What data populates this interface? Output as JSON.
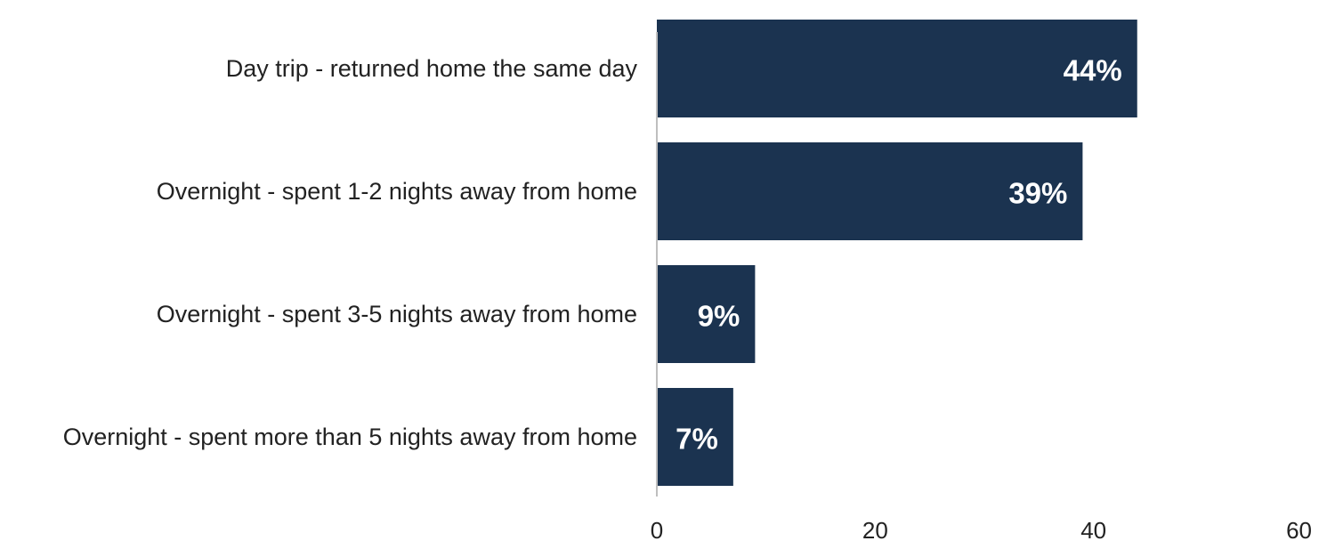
{
  "chart_data": {
    "type": "bar",
    "orientation": "horizontal",
    "categories": [
      "Day trip - returned home the same day",
      "Overnight - spent 1-2 nights away from home",
      "Overnight - spent 3-5 nights away from home",
      "Overnight - spent more than 5 nights away from home"
    ],
    "values": [
      44,
      39,
      9,
      7
    ],
    "data_labels": [
      "44%",
      "39%",
      "9%",
      "7%"
    ],
    "xlim": [
      0,
      60
    ],
    "xticks": [
      0,
      20,
      40,
      60
    ],
    "xtick_labels": [
      "0",
      "20",
      "40",
      "60"
    ],
    "xlabel": "",
    "ylabel": "",
    "title": "",
    "grid": false,
    "legend": "none",
    "colors": {
      "bar": "#1b3350",
      "axis": "#bfbfbf",
      "text": "#222222",
      "data_label": "#ffffff"
    }
  }
}
